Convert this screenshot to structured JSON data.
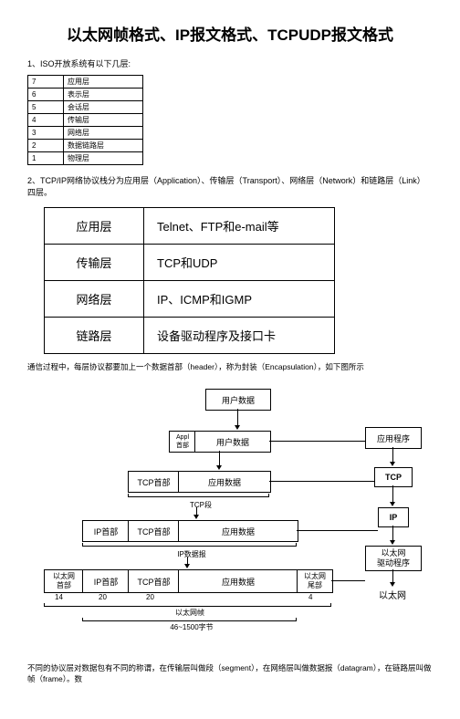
{
  "title": "以太网帧格式、IP报文格式、TCPUDP报文格式",
  "sect1": "1、ISO开放系统有以下几层:",
  "osi": [
    [
      "7",
      "应用层"
    ],
    [
      "6",
      "表示层"
    ],
    [
      "5",
      "会话层"
    ],
    [
      "4",
      "传输层"
    ],
    [
      "3",
      "网络层"
    ],
    [
      "2",
      "数据链路层"
    ],
    [
      "1",
      "物理层"
    ]
  ],
  "sect2": "2、TCP/IP网络协议栈分为应用层（Application）、传输层（Transport）、网络层（Network）和链路层（Link）四层。",
  "layers": [
    [
      "应用层",
      "Telnet、FTP和e-mail等"
    ],
    [
      "传输层",
      "TCP和UDP"
    ],
    [
      "网络层",
      "IP、ICMP和IGMP"
    ],
    [
      "链路层",
      "设备驱动程序及接口卡"
    ]
  ],
  "p1": "通信过程中，每层协议都要加上一个数据首部（header），称为封装（Encapsulation），如下图所示",
  "d": {
    "ud": "用户数据",
    "app": "Appl\n首部",
    "tcp": "TCP首部",
    "ip": "IP首部",
    "eh": "以太网\n首部",
    "et": "以太网\n尾部",
    "ad": "应用数据",
    "ts": "TCP段",
    "ipd": "IP数据报",
    "ef": "以太网帧",
    "byt": "46~1500字节",
    "n14": "14",
    "n20": "20",
    "n4": "4",
    "ap": "应用程序",
    "tc": "TCP",
    "ipb": "IP",
    "dr": "以太网\n驱动程序",
    "en": "以太网"
  },
  "p2": "不同的协议层对数据包有不同的称谓，在传输层叫做段（segment），在网络层叫做数据报（datagram），在链路层叫做帧（frame）。数"
}
